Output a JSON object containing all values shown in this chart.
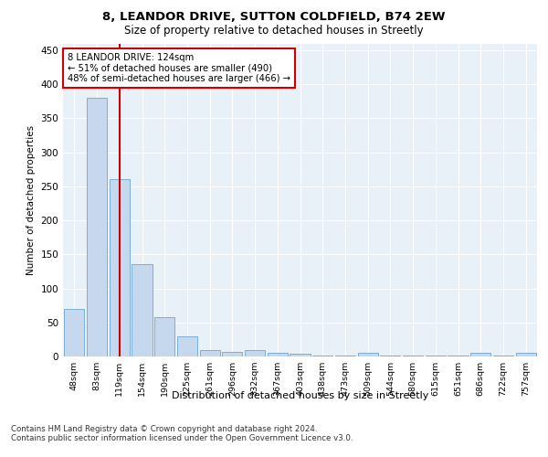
{
  "title1": "8, LEANDOR DRIVE, SUTTON COLDFIELD, B74 2EW",
  "title2": "Size of property relative to detached houses in Streetly",
  "xlabel": "Distribution of detached houses by size in Streetly",
  "ylabel": "Number of detached properties",
  "categories": [
    "48sqm",
    "83sqm",
    "119sqm",
    "154sqm",
    "190sqm",
    "225sqm",
    "261sqm",
    "296sqm",
    "332sqm",
    "367sqm",
    "403sqm",
    "438sqm",
    "473sqm",
    "509sqm",
    "544sqm",
    "580sqm",
    "615sqm",
    "651sqm",
    "686sqm",
    "722sqm",
    "757sqm"
  ],
  "values": [
    70,
    380,
    260,
    135,
    58,
    30,
    10,
    7,
    10,
    5,
    4,
    1,
    1,
    5,
    1,
    1,
    1,
    1,
    5,
    1,
    5
  ],
  "bar_color": "#c5d8ed",
  "bar_edge_color": "#7bafd4",
  "marker_index": 2,
  "marker_color": "#cc0000",
  "annotation_line1": "8 LEANDOR DRIVE: 124sqm",
  "annotation_line2": "← 51% of detached houses are smaller (490)",
  "annotation_line3": "48% of semi-detached houses are larger (466) →",
  "annotation_box_color": "#ffffff",
  "annotation_box_edge": "#cc0000",
  "ylim": [
    0,
    460
  ],
  "yticks": [
    0,
    50,
    100,
    150,
    200,
    250,
    300,
    350,
    400,
    450
  ],
  "bg_color": "#e8f0f8",
  "footnote": "Contains HM Land Registry data © Crown copyright and database right 2024.\nContains public sector information licensed under the Open Government Licence v3.0."
}
